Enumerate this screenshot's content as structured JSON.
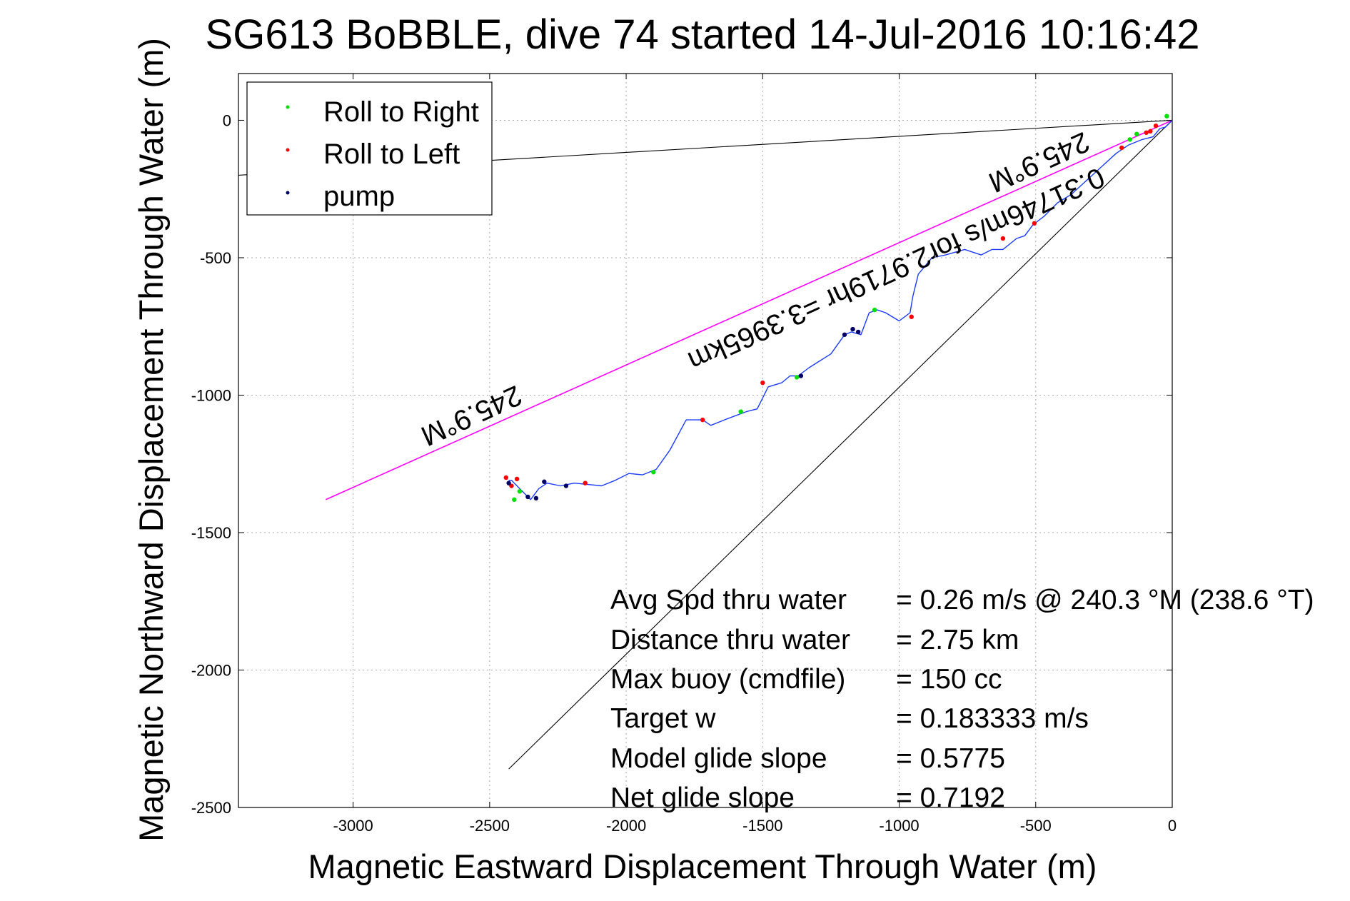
{
  "chart_data": {
    "type": "line",
    "title": "SG613 BoBBLE, dive 74 started 14-Jul-2016 10:16:42",
    "xlabel": "Magnetic Eastward Displacement Through Water (m)",
    "ylabel": "Magnetic Northward Displacement Through Water (m)",
    "xlim": [
      -3420,
      0
    ],
    "ylim": [
      -2500,
      170
    ],
    "xticks": [
      -3000,
      -2500,
      -2000,
      -1500,
      -1000,
      -500,
      0
    ],
    "yticks": [
      0,
      -500,
      -1000,
      -1500,
      -2000,
      -2500
    ],
    "grid": true,
    "legend": {
      "placement": "top-left",
      "entries": [
        {
          "label": "Roll to Right",
          "color": "#00e000"
        },
        {
          "label": "Roll to Left",
          "color": "#ff0000"
        },
        {
          "label": "pump",
          "color": "#000066"
        }
      ]
    },
    "track": {
      "color": "#1a3cff",
      "x": [
        0,
        -25,
        -45,
        -70,
        -110,
        -160,
        -205,
        -260,
        -315,
        -370,
        -420,
        -470,
        -510,
        -540,
        -570,
        -620,
        -660,
        -700,
        -760,
        -830,
        -880,
        -930,
        -950,
        -960,
        -1000,
        -1050,
        -1080,
        -1110,
        -1140,
        -1175,
        -1200,
        -1250,
        -1330,
        -1370,
        -1400,
        -1430,
        -1480,
        -1520,
        -1560,
        -1600,
        -1640,
        -1690,
        -1720,
        -1780,
        -1840,
        -1890,
        -1940,
        -1990,
        -2040,
        -2090,
        -2140,
        -2190,
        -2240,
        -2290,
        -2320,
        -2350,
        -2380,
        -2400,
        -2420,
        -2430
      ],
      "y": [
        0,
        -25,
        -30,
        -60,
        -70,
        -90,
        -120,
        -170,
        -220,
        -270,
        -300,
        -350,
        -380,
        -420,
        -430,
        -470,
        -470,
        -490,
        -470,
        -490,
        -500,
        -560,
        -640,
        -700,
        -730,
        -700,
        -690,
        -700,
        -780,
        -770,
        -780,
        -850,
        -900,
        -930,
        -930,
        -955,
        -970,
        -1050,
        -1060,
        -1075,
        -1090,
        -1110,
        -1090,
        -1090,
        -1200,
        -1270,
        -1290,
        -1285,
        -1310,
        -1330,
        -1325,
        -1320,
        -1330,
        -1320,
        -1340,
        -1380,
        -1350,
        -1330,
        -1310,
        -1310
      ]
    },
    "roll_right_points": {
      "x": [
        -20,
        -130,
        -155,
        -1090,
        -1375,
        -1580,
        -1900,
        -2390,
        -2410
      ],
      "y": [
        15,
        -50,
        -70,
        -690,
        -935,
        -1060,
        -1280,
        -1350,
        -1380
      ]
    },
    "roll_left_points": {
      "x": [
        -60,
        -80,
        -95,
        -185,
        -505,
        -620,
        -955,
        -1500,
        -1720,
        -2150,
        -2400,
        -2420,
        -2440
      ],
      "y": [
        -20,
        -40,
        -45,
        -100,
        -375,
        -430,
        -715,
        -955,
        -1090,
        -1320,
        -1305,
        -1330,
        -1300
      ]
    },
    "pump_points": {
      "x": [
        -1150,
        -1170,
        -1200,
        -1360,
        -2220,
        -2300,
        -2330,
        -2360,
        -2430
      ],
      "y": [
        -770,
        -760,
        -780,
        -930,
        -1330,
        -1315,
        -1375,
        -1370,
        -1320
      ]
    },
    "reference_lines": [
      {
        "name": "heading-line-magenta",
        "color": "#ff00ff",
        "x": [
          0,
          -3100
        ],
        "y": [
          0,
          -1380
        ]
      },
      {
        "name": "guide-line-upper",
        "color": "#000000",
        "x": [
          0,
          -3420
        ],
        "y": [
          0,
          -200
        ]
      },
      {
        "name": "guide-line-lower",
        "color": "#000000",
        "x": [
          0,
          -2430
        ],
        "y": [
          0,
          -2360
        ]
      }
    ],
    "annotations": {
      "heading_label_1": "245.9°M",
      "heading_label_2": "245.9°M",
      "speed_label": "0.31746m/s for2.9719hr =3.3965km"
    },
    "stats": [
      {
        "label": "Avg Spd thru water",
        "value": "=  0.26 m/s @ 240.3 °M (238.6 °T)"
      },
      {
        "label": "Distance thru water",
        "value": "=  2.75 km"
      },
      {
        "label": "Max buoy (cmdfile)",
        "value": "= 150 cc"
      },
      {
        "label": "Target w",
        "value": "= 0.183333 m/s"
      },
      {
        "label": "Model glide slope",
        "value": "= 0.5775"
      },
      {
        "label": "Net glide slope",
        "value": "= 0.7192"
      }
    ]
  }
}
